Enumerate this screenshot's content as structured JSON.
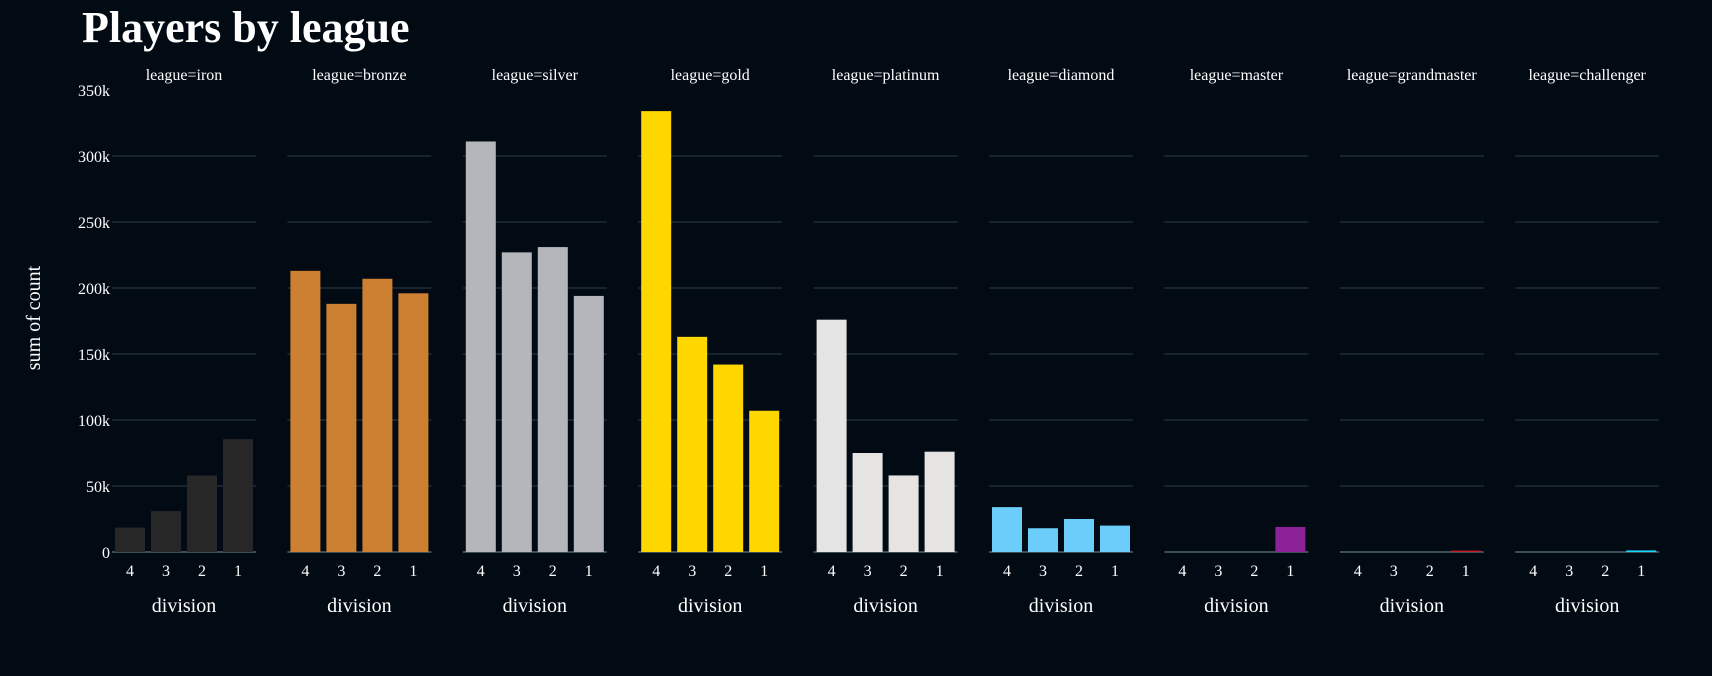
{
  "chart_data": {
    "type": "bar",
    "title": "Players by league",
    "ylabel": "sum of count",
    "xlabel": "division",
    "ylim": [
      0,
      350000
    ],
    "yticks": [
      0,
      50000,
      100000,
      150000,
      200000,
      250000,
      300000,
      350000
    ],
    "ytick_labels": [
      "0",
      "50k",
      "100k",
      "150k",
      "200k",
      "250k",
      "300k",
      "350k"
    ],
    "grid": true,
    "categories": [
      "4",
      "3",
      "2",
      "1"
    ],
    "facets": [
      {
        "label": "league=iron",
        "color": "#272727",
        "values": [
          18500,
          31000,
          58000,
          85500
        ]
      },
      {
        "label": "league=bronze",
        "color": "#cd7f32",
        "values": [
          213000,
          188000,
          207000,
          196000
        ]
      },
      {
        "label": "league=silver",
        "color": "#b4b6bb",
        "values": [
          311000,
          227000,
          231000,
          194000
        ]
      },
      {
        "label": "league=gold",
        "color": "#ffd700",
        "values": [
          334000,
          163000,
          142000,
          107000
        ]
      },
      {
        "label": "league=platinum",
        "color": "#e6e4e2",
        "values": [
          176000,
          75000,
          58000,
          76000
        ]
      },
      {
        "label": "league=diamond",
        "color": "#6bcdf9",
        "values": [
          34000,
          18000,
          25000,
          20000
        ]
      },
      {
        "label": "league=master",
        "color": "#8b2396",
        "values": [
          0,
          0,
          0,
          19000
        ]
      },
      {
        "label": "league=grandmaster",
        "color": "#c0202a",
        "values": [
          0,
          0,
          0,
          1100
        ]
      },
      {
        "label": "league=challenger",
        "color": "#1bd6f5",
        "values": [
          0,
          0,
          0,
          1200
        ]
      }
    ]
  }
}
